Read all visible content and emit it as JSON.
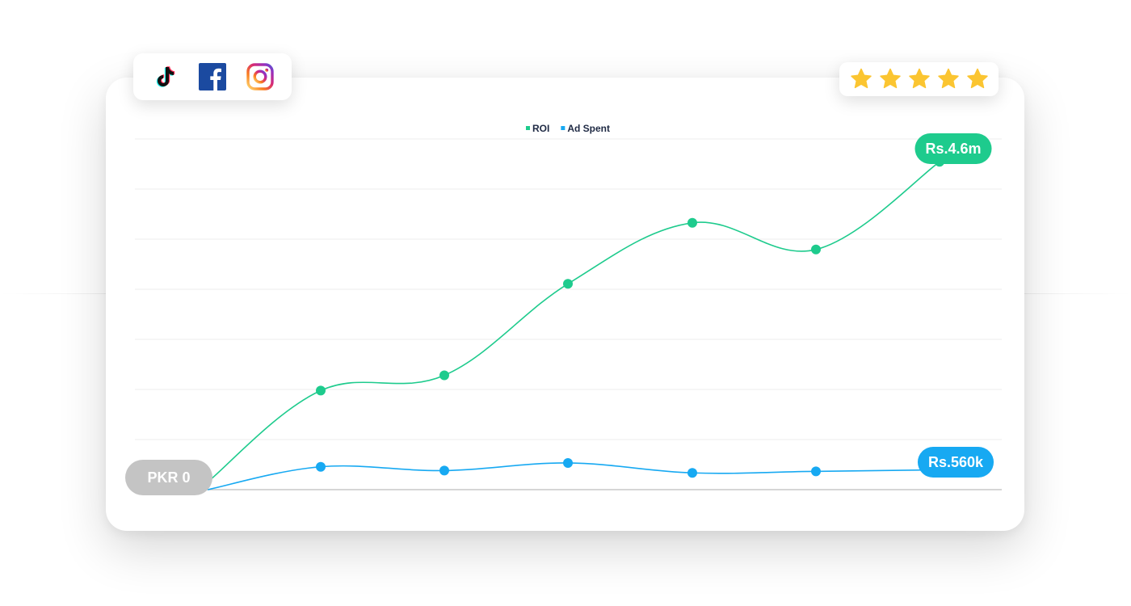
{
  "chart_data": {
    "type": "line",
    "legend_position": "top-center",
    "grid": true,
    "ylim": [
      0,
      4.6
    ],
    "x": [
      0,
      1,
      2,
      3,
      4,
      5,
      6
    ],
    "series": [
      {
        "name": "ROI",
        "color": "#1ecb8d",
        "values": [
          0.1,
          1.3,
          1.5,
          2.7,
          3.5,
          3.15,
          4.3
        ]
      },
      {
        "name": "Ad Spent",
        "color": "#17a9f2",
        "values": [
          0.0,
          0.3,
          0.25,
          0.35,
          0.22,
          0.24,
          0.26
        ]
      }
    ],
    "annotations": {
      "start_label": "PKR 0",
      "roi_end_label": "Rs.4.6m",
      "adspent_end_label": "Rs.560k"
    }
  },
  "social": {
    "icons": [
      "tiktok-icon",
      "facebook-icon",
      "instagram-icon"
    ]
  },
  "rating": {
    "stars": 5,
    "max": 5,
    "color": "#fbc531"
  }
}
